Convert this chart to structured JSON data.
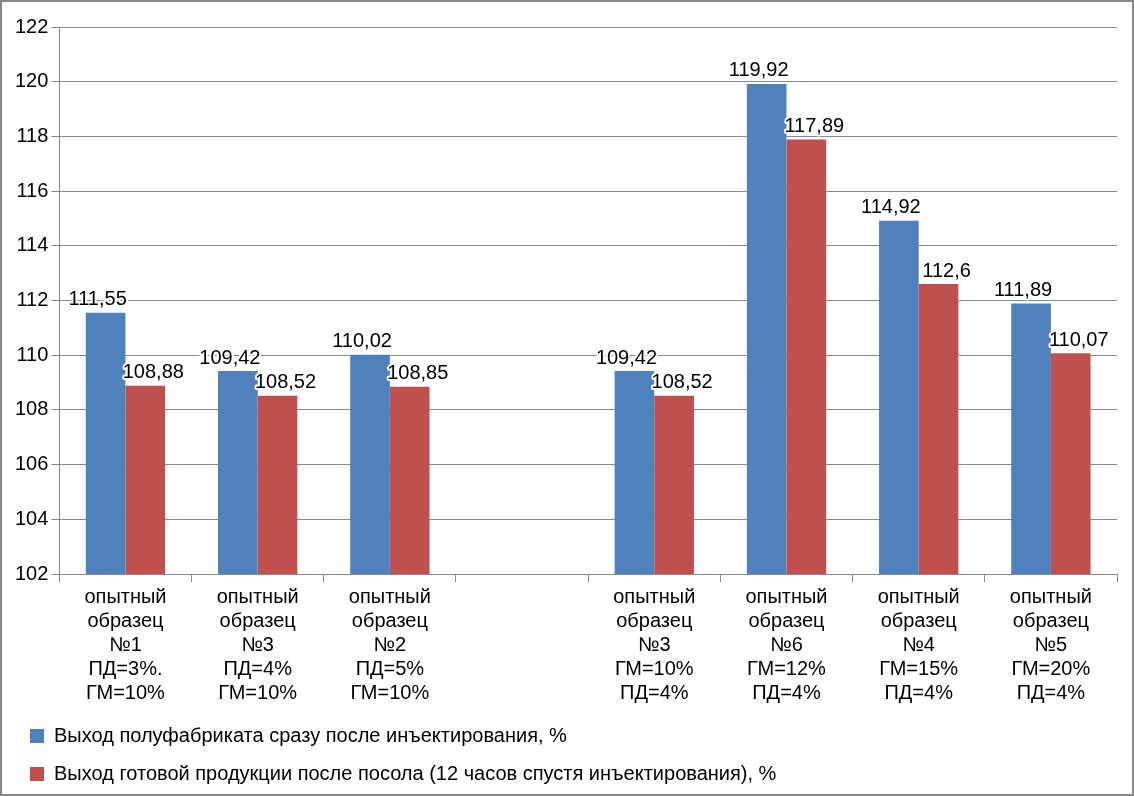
{
  "chart_data": {
    "type": "bar",
    "categories": [
      "опытный образец №1 ПД=3%. ГМ=10%",
      "опытный образец №3 ПД=4% ГМ=10%",
      "опытный образец №2 ПД=5% ГМ=10%",
      null,
      "опытный образец №3 ГМ=10% ПД=4%",
      "опытный образец №6 ГМ=12% ПД=4%",
      "опытный образец №4 ГМ=15% ПД=4%",
      "опытный образец №5 ГМ=20% ПД=4%"
    ],
    "series": [
      {
        "name": "Выход полуфабриката сразу после инъектирования, %",
        "color": "#4f81bd",
        "values": [
          111.55,
          109.42,
          110.02,
          null,
          109.42,
          119.92,
          114.92,
          111.89
        ],
        "value_labels": [
          "111,55",
          "109,42",
          "110,02",
          null,
          "109,42",
          "119,92",
          "114,92",
          "111,89"
        ]
      },
      {
        "name": "Выход готовой продукции после посола (12 часов спустя инъектирования), %",
        "color": "#c0504d",
        "values": [
          108.88,
          108.52,
          108.85,
          null,
          108.52,
          117.89,
          112.6,
          110.07
        ],
        "value_labels": [
          "108,88",
          "108,52",
          "108,85",
          null,
          "108,52",
          "117,89",
          "112,6",
          "110,07"
        ]
      }
    ],
    "ylim": [
      102,
      122
    ],
    "yticks": [
      102,
      104,
      106,
      108,
      110,
      112,
      114,
      116,
      118,
      120,
      122
    ],
    "grid": "y",
    "legend": "bottom"
  }
}
